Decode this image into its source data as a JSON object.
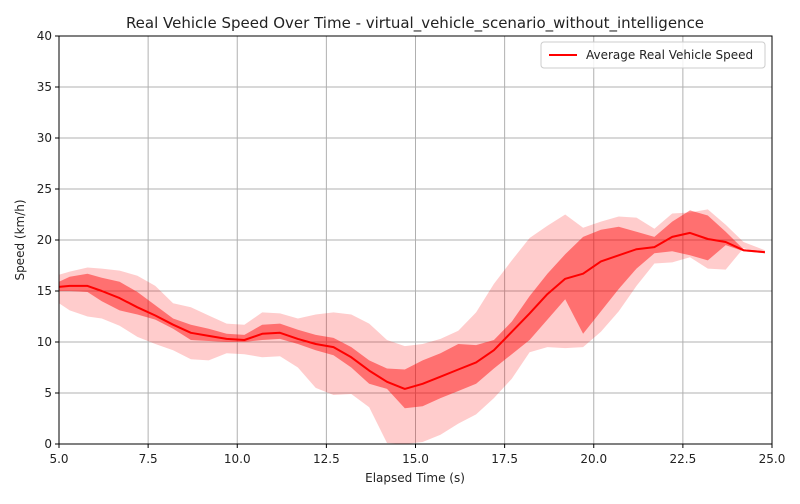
{
  "chart_data": {
    "type": "line",
    "title": "Real Vehicle Speed Over Time - virtual_vehicle_scenario_without_intelligence",
    "xlabel": "Elapsed Time (s)",
    "ylabel": "Speed (km/h)",
    "xlim": [
      5,
      25
    ],
    "ylim": [
      0,
      40
    ],
    "xticks": [
      5,
      7.5,
      10,
      12.5,
      15,
      17.5,
      20,
      22.5,
      25
    ],
    "xtick_labels": [
      "5.0",
      "7.5",
      "10.0",
      "12.5",
      "15.0",
      "17.5",
      "20.0",
      "22.5",
      "25.0"
    ],
    "yticks": [
      0,
      5,
      10,
      15,
      20,
      25,
      30,
      35,
      40
    ],
    "ytick_labels": [
      "0",
      "5",
      "10",
      "15",
      "20",
      "25",
      "30",
      "35",
      "40"
    ],
    "grid": true,
    "legend_position": "top-right",
    "colors": {
      "line": "#ff0000",
      "inner_band": "#ff0000",
      "outer_band": "#ff0000",
      "grid": "#b0b0b0",
      "axis": "#000000"
    },
    "x": [
      5.0,
      5.3,
      5.8,
      6.2,
      6.7,
      7.2,
      7.7,
      8.2,
      8.7,
      9.2,
      9.7,
      10.2,
      10.7,
      11.2,
      11.7,
      12.2,
      12.7,
      13.2,
      13.7,
      14.2,
      14.7,
      15.2,
      15.7,
      16.2,
      16.7,
      17.2,
      17.7,
      18.2,
      18.7,
      19.2,
      19.7,
      20.2,
      20.7,
      21.2,
      21.7,
      22.2,
      22.7,
      23.2,
      23.7,
      24.2,
      24.8
    ],
    "series": [
      {
        "name": "Average Real Vehicle Speed",
        "values": [
          15.4,
          15.5,
          15.5,
          15.0,
          14.3,
          13.4,
          12.6,
          11.7,
          10.9,
          10.6,
          10.3,
          10.2,
          10.8,
          10.9,
          10.3,
          9.8,
          9.5,
          8.5,
          7.2,
          6.1,
          5.4,
          5.9,
          6.6,
          7.3,
          8.0,
          9.2,
          11.0,
          12.8,
          14.7,
          16.2,
          16.7,
          17.9,
          18.5,
          19.1,
          19.3,
          20.3,
          20.7,
          20.1,
          19.8,
          19.0,
          18.8
        ]
      }
    ],
    "band_inner": {
      "lower": [
        15.0,
        15.0,
        14.9,
        14.0,
        13.1,
        12.7,
        12.2,
        11.3,
        10.2,
        10.1,
        10.0,
        10.0,
        10.2,
        10.3,
        9.8,
        9.2,
        8.7,
        7.5,
        5.9,
        5.4,
        3.5,
        3.7,
        4.5,
        5.2,
        5.9,
        7.4,
        8.8,
        10.2,
        12.2,
        14.2,
        10.8,
        13.0,
        15.2,
        17.2,
        18.7,
        18.9,
        18.5,
        18.0,
        19.5,
        18.9,
        18.7
      ],
      "upper": [
        15.9,
        16.4,
        16.7,
        16.3,
        15.9,
        14.9,
        13.6,
        12.3,
        11.7,
        11.3,
        10.8,
        10.7,
        11.7,
        11.8,
        11.2,
        10.7,
        10.4,
        9.5,
        8.2,
        7.4,
        7.3,
        8.2,
        8.9,
        9.8,
        9.7,
        10.2,
        12.0,
        14.5,
        16.7,
        18.6,
        20.3,
        21.0,
        21.3,
        20.8,
        20.3,
        21.8,
        22.9,
        22.4,
        20.8,
        19.1,
        18.9
      ]
    },
    "band_outer": {
      "lower": [
        13.8,
        13.1,
        12.5,
        12.3,
        11.6,
        10.5,
        9.8,
        9.2,
        8.3,
        8.2,
        8.9,
        8.8,
        8.5,
        8.6,
        7.5,
        5.5,
        4.8,
        4.9,
        3.6,
        0.1,
        0.0,
        0.2,
        0.9,
        2.0,
        2.9,
        4.5,
        6.4,
        9.0,
        9.5,
        9.4,
        9.5,
        11.0,
        13.0,
        15.5,
        17.7,
        17.8,
        18.3,
        17.2,
        17.1,
        19.2,
        18.7
      ],
      "upper": [
        16.6,
        16.9,
        17.3,
        17.2,
        17.0,
        16.5,
        15.5,
        13.8,
        13.4,
        12.6,
        11.8,
        11.7,
        12.9,
        12.8,
        12.3,
        12.7,
        12.9,
        12.7,
        11.8,
        10.2,
        9.6,
        9.8,
        10.3,
        11.1,
        12.9,
        15.7,
        18.0,
        20.2,
        21.4,
        22.5,
        21.2,
        21.8,
        22.3,
        22.2,
        21.1,
        22.6,
        22.7,
        23.0,
        21.5,
        19.8,
        19.0
      ]
    }
  }
}
